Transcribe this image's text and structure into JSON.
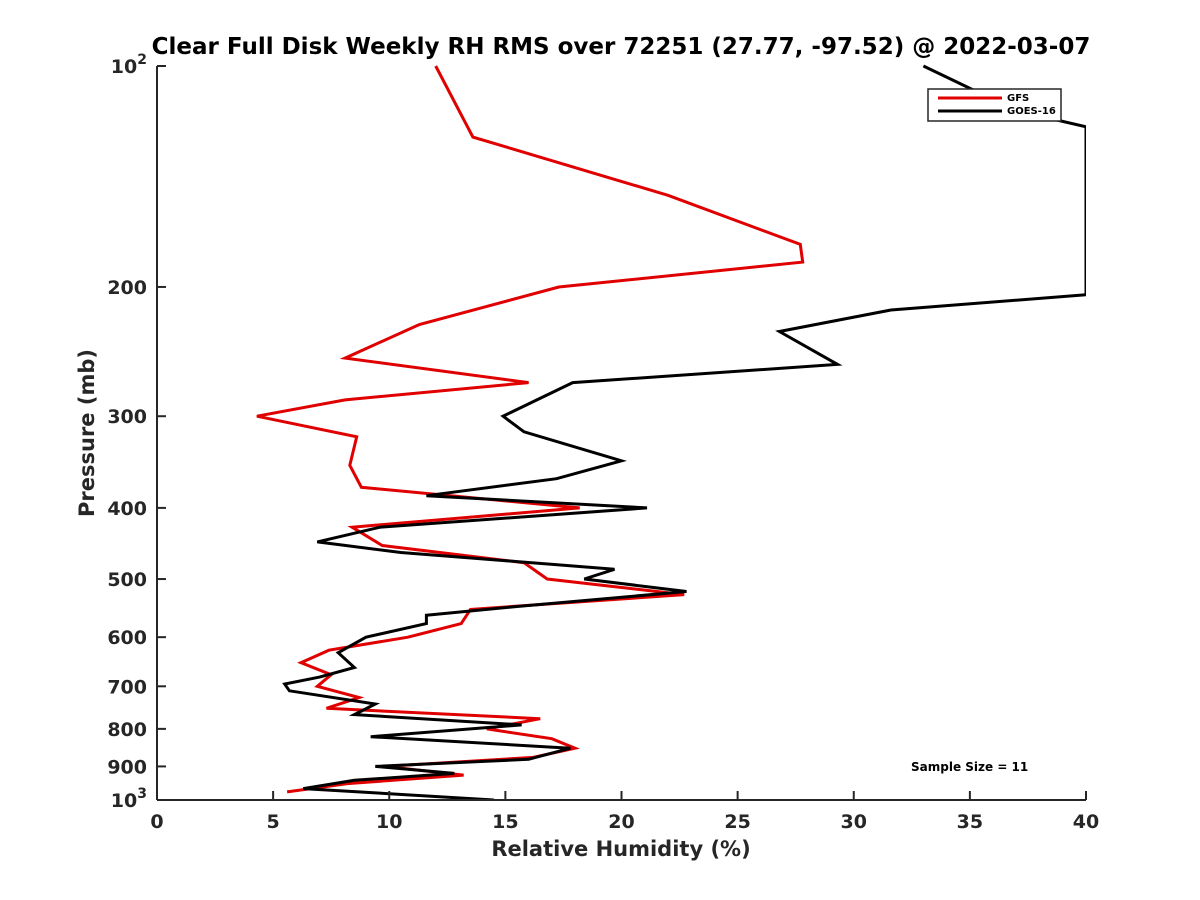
{
  "chart_data": {
    "type": "line",
    "title": "Clear Full Disk Weekly RH RMS over 72251 (27.77, -97.52) @ 2022-03-07",
    "xlabel": "Relative Humidity (%)",
    "ylabel": "Pressure (mb)",
    "xlim": [
      0,
      40
    ],
    "ylim": [
      100,
      1000
    ],
    "yscale": "log",
    "yreversed": true,
    "x_ticks": [
      "0",
      "5",
      "10",
      "15",
      "20",
      "25",
      "30",
      "35",
      "40"
    ],
    "y_ticks": [
      {
        "value": 100,
        "base": "10",
        "exp": "2"
      },
      {
        "value": 200,
        "label": "200"
      },
      {
        "value": 300,
        "label": "300"
      },
      {
        "value": 400,
        "label": "400"
      },
      {
        "value": 500,
        "label": "500"
      },
      {
        "value": 600,
        "label": "600"
      },
      {
        "value": 700,
        "label": "700"
      },
      {
        "value": 800,
        "label": "800"
      },
      {
        "value": 900,
        "label": "900"
      },
      {
        "value": 1000,
        "base": "10",
        "exp": "3"
      }
    ],
    "grid": false,
    "legend_position": "top-right",
    "annotation": "Sample Size = 11",
    "series": [
      {
        "name": "GFS",
        "color": "#e00000",
        "points": [
          [
            12.0,
            100
          ],
          [
            13.6,
            125
          ],
          [
            22.0,
            150
          ],
          [
            27.7,
            175
          ],
          [
            27.8,
            185
          ],
          [
            17.3,
            200
          ],
          [
            11.3,
            225
          ],
          [
            8.1,
            250
          ],
          [
            16.0,
            270
          ],
          [
            8.1,
            285
          ],
          [
            4.3,
            300
          ],
          [
            8.6,
            320
          ],
          [
            8.3,
            350
          ],
          [
            8.8,
            375
          ],
          [
            18.2,
            400
          ],
          [
            8.4,
            425
          ],
          [
            9.7,
            450
          ],
          [
            15.8,
            475
          ],
          [
            16.8,
            500
          ],
          [
            22.7,
            525
          ],
          [
            13.5,
            550
          ],
          [
            13.1,
            575
          ],
          [
            10.8,
            600
          ],
          [
            7.4,
            625
          ],
          [
            6.2,
            650
          ],
          [
            7.5,
            675
          ],
          [
            6.9,
            700
          ],
          [
            8.7,
            725
          ],
          [
            7.3,
            750
          ],
          [
            16.5,
            775
          ],
          [
            14.2,
            800
          ],
          [
            17.0,
            825
          ],
          [
            18.0,
            850
          ],
          [
            16.2,
            875
          ],
          [
            9.8,
            900
          ],
          [
            13.2,
            925
          ],
          [
            8.2,
            950
          ],
          [
            5.6,
            975
          ]
        ]
      },
      {
        "name": "GOES-16",
        "color": "#000000",
        "points": [
          [
            33.0,
            100
          ],
          [
            37.0,
            115
          ],
          [
            40.0,
            121
          ],
          [
            40.0,
            205
          ],
          [
            31.6,
            215
          ],
          [
            26.8,
            230
          ],
          [
            29.3,
            255
          ],
          [
            17.9,
            270
          ],
          [
            14.9,
            300
          ],
          [
            15.8,
            315
          ],
          [
            20.0,
            345
          ],
          [
            17.2,
            365
          ],
          [
            11.6,
            385
          ],
          [
            21.1,
            400
          ],
          [
            9.6,
            425
          ],
          [
            6.9,
            445
          ],
          [
            10.5,
            460
          ],
          [
            19.7,
            485
          ],
          [
            18.4,
            500
          ],
          [
            22.8,
            520
          ],
          [
            15.5,
            545
          ],
          [
            11.6,
            560
          ],
          [
            11.6,
            575
          ],
          [
            9.0,
            600
          ],
          [
            7.8,
            630
          ],
          [
            8.5,
            660
          ],
          [
            7.0,
            680
          ],
          [
            5.5,
            695
          ],
          [
            5.7,
            710
          ],
          [
            9.4,
            740
          ],
          [
            8.5,
            765
          ],
          [
            15.7,
            790
          ],
          [
            9.2,
            820
          ],
          [
            17.8,
            850
          ],
          [
            16.0,
            880
          ],
          [
            9.4,
            900
          ],
          [
            12.8,
            920
          ],
          [
            8.5,
            940
          ],
          [
            6.3,
            965
          ],
          [
            14.5,
            1000
          ]
        ]
      }
    ]
  }
}
